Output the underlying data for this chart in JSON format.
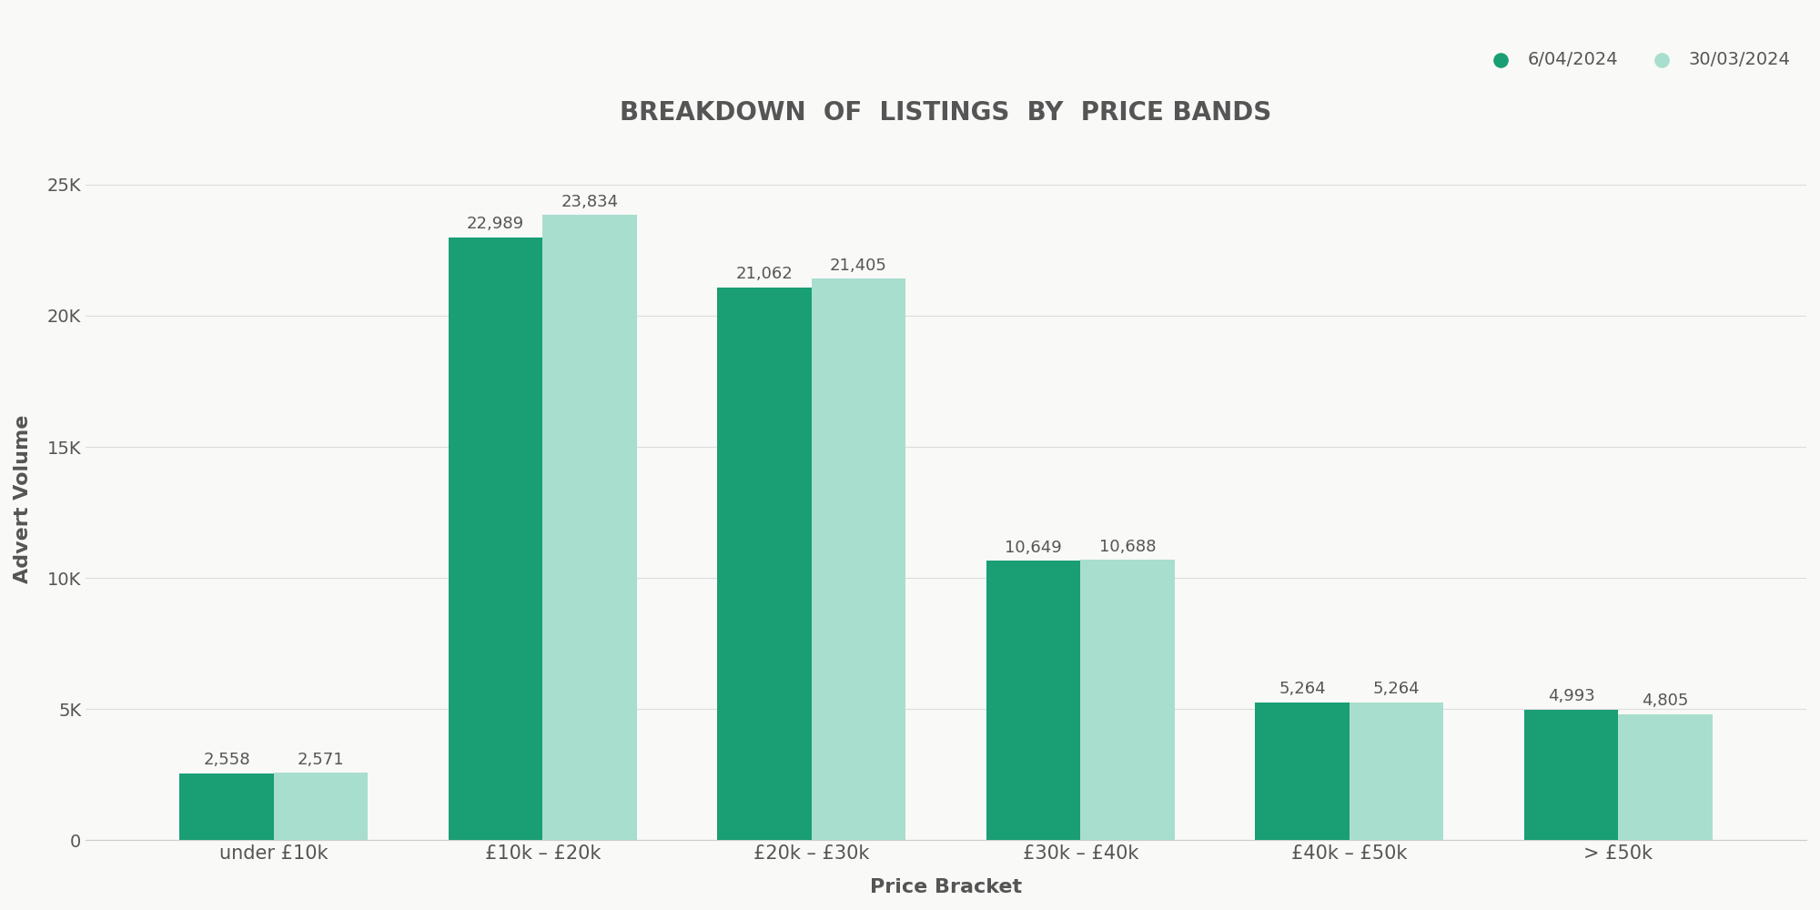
{
  "title": "BREAKDOWN  OF  LISTINGS  BY  PRICE BANDS",
  "xlabel": "Price Bracket",
  "ylabel": "Advert Volume",
  "categories": [
    "under £10k",
    "£10k – £20k",
    "£20k – £30k",
    "£30k – £40k",
    "£40k – £50k",
    "> £50k"
  ],
  "series1_label": "6/04/2024",
  "series2_label": "30/03/2024",
  "series1_values": [
    2558,
    22989,
    21062,
    10649,
    5264,
    4993
  ],
  "series2_values": [
    2571,
    23834,
    21405,
    10688,
    5264,
    4805
  ],
  "series1_color": "#1a9e74",
  "series2_color": "#a8dece",
  "background_color": "#f9f9f7",
  "title_color": "#555555",
  "label_color": "#555555",
  "bar_label_color": "#555555",
  "ylim": [
    0,
    26000
  ],
  "yticks": [
    0,
    5000,
    10000,
    15000,
    20000,
    25000
  ],
  "ytick_labels": [
    "0",
    "5K",
    "10K",
    "15K",
    "20K",
    "25K"
  ],
  "bar_width": 0.35,
  "figsize": [
    20.0,
    10.0
  ],
  "dpi": 100
}
